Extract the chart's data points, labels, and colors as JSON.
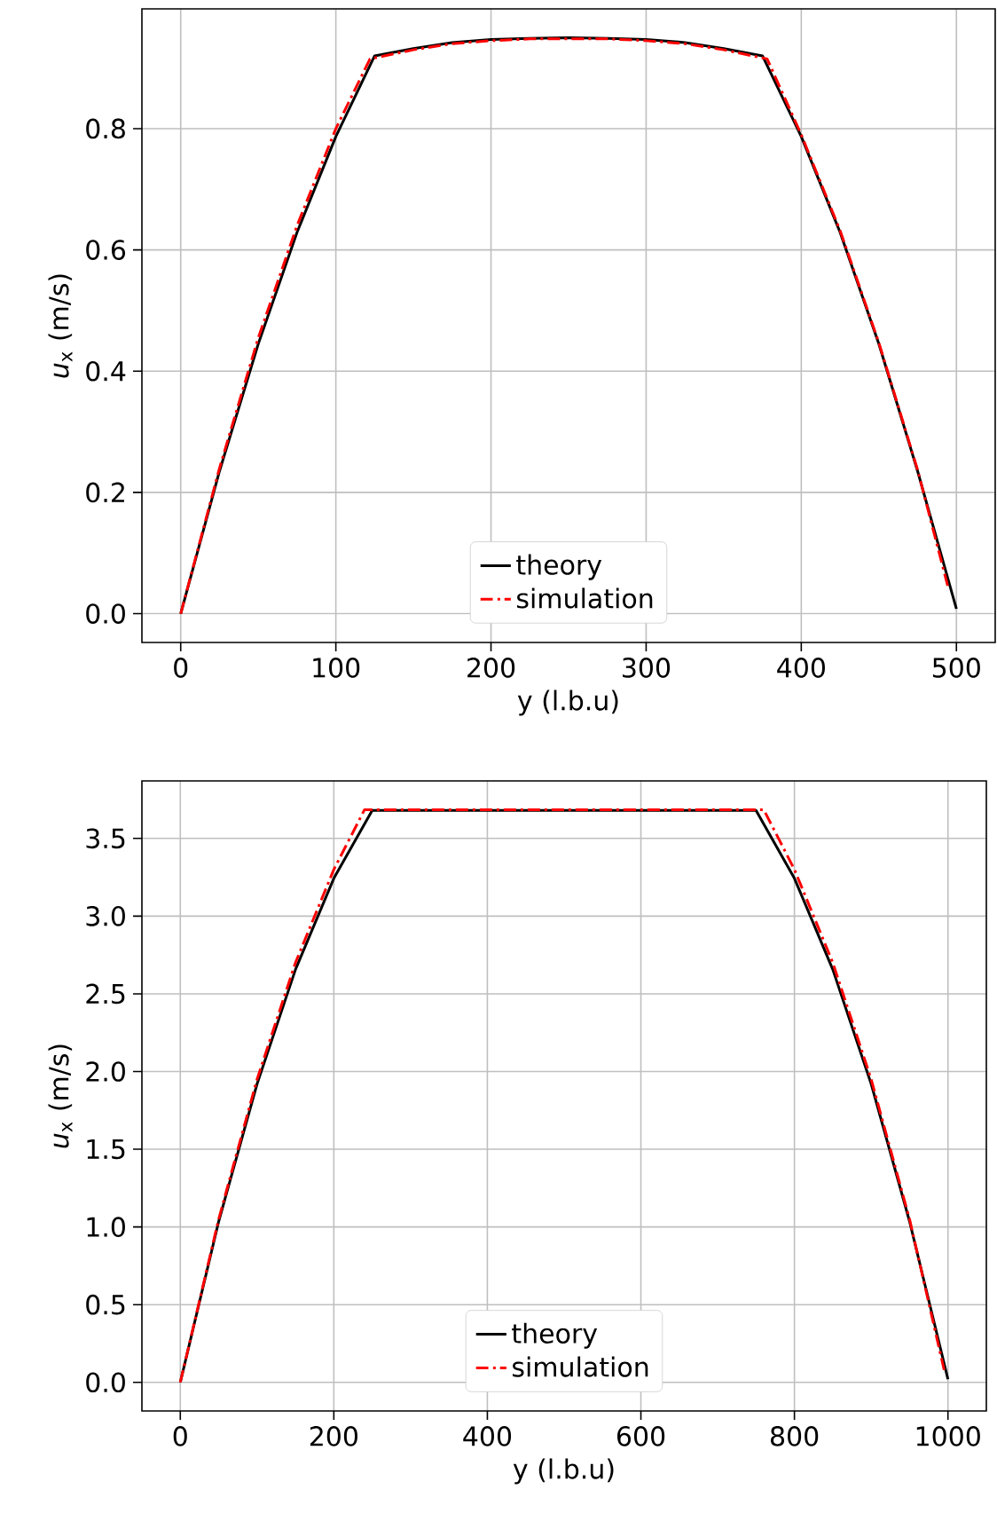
{
  "chart_data": [
    {
      "type": "line",
      "xlabel": "y (l.b.u)",
      "ylabel": "*u*$_{x}$ (m/s)",
      "xlim": [
        -25,
        525
      ],
      "ylim": [
        -0.0475,
        0.9975
      ],
      "xticks": [
        0,
        100,
        200,
        300,
        400,
        500
      ],
      "yticks": [
        {
          "value": 0,
          "label": "0.0"
        },
        {
          "value": 0.2,
          "label": "0.2"
        },
        {
          "value": 0.4,
          "label": "0.4"
        },
        {
          "value": 0.6,
          "label": "0.6"
        },
        {
          "value": 0.8,
          "label": "0.8"
        }
      ],
      "grid": true,
      "legend": "bottom",
      "series": [
        {
          "name": "theory",
          "color": "#000000",
          "line_style": "solid",
          "x": [
            0,
            25,
            50,
            75,
            100,
            125,
            150,
            175,
            200,
            225,
            250,
            275,
            300,
            325,
            350,
            375,
            400,
            425,
            450,
            475,
            500
          ],
          "values": [
            0,
            0.235,
            0.445,
            0.629,
            0.787,
            0.92,
            0.932,
            0.942,
            0.947,
            0.949,
            0.95,
            0.949,
            0.947,
            0.942,
            0.932,
            0.92,
            0.787,
            0.629,
            0.445,
            0.235,
            0.008
          ]
        },
        {
          "name": "simulation",
          "color": "#ff0000",
          "line_style": "dashdot",
          "x": [
            0,
            25,
            50,
            75,
            100,
            122,
            150,
            175,
            200,
            225,
            250,
            275,
            300,
            325,
            350,
            378,
            400,
            425,
            450,
            475,
            495
          ],
          "values": [
            0,
            0.24,
            0.455,
            0.64,
            0.8,
            0.915,
            0.93,
            0.94,
            0.945,
            0.948,
            0.948,
            0.948,
            0.945,
            0.94,
            0.93,
            0.915,
            0.79,
            0.632,
            0.447,
            0.237,
            0.04
          ]
        }
      ]
    },
    {
      "type": "line",
      "xlabel": "y (l.b.u)",
      "ylabel": "*u*$_{x}$ (m/s)",
      "xlim": [
        -50,
        1050
      ],
      "ylim": [
        -0.184,
        3.87
      ],
      "xticks": [
        0,
        200,
        400,
        600,
        800,
        1000
      ],
      "yticks": [
        {
          "value": 0,
          "label": "0.0"
        },
        {
          "value": 0.5,
          "label": "0.5"
        },
        {
          "value": 1,
          "label": "1.0"
        },
        {
          "value": 1.5,
          "label": "1.5"
        },
        {
          "value": 2,
          "label": "2.0"
        },
        {
          "value": 2.5,
          "label": "2.5"
        },
        {
          "value": 3,
          "label": "3.0"
        },
        {
          "value": 3.5,
          "label": "3.5"
        }
      ],
      "grid": true,
      "legend": "bottom",
      "series": [
        {
          "name": "theory",
          "color": "#000000",
          "line_style": "solid",
          "x": [
            0,
            50,
            100,
            150,
            200,
            250,
            500,
            750,
            800,
            850,
            900,
            950,
            1000
          ],
          "values": [
            0,
            1.035,
            1.92,
            2.656,
            3.243,
            3.68,
            3.68,
            3.68,
            3.243,
            2.656,
            1.92,
            1.035,
            0.02
          ]
        },
        {
          "name": "simulation",
          "color": "#ff0000",
          "line_style": "dashdot",
          "x": [
            0,
            50,
            100,
            150,
            200,
            240,
            500,
            760,
            800,
            850,
            900,
            950,
            995
          ],
          "values": [
            0,
            1.05,
            1.95,
            2.7,
            3.3,
            3.685,
            3.685,
            3.685,
            3.3,
            2.7,
            1.95,
            1.05,
            0.08
          ]
        }
      ]
    }
  ]
}
